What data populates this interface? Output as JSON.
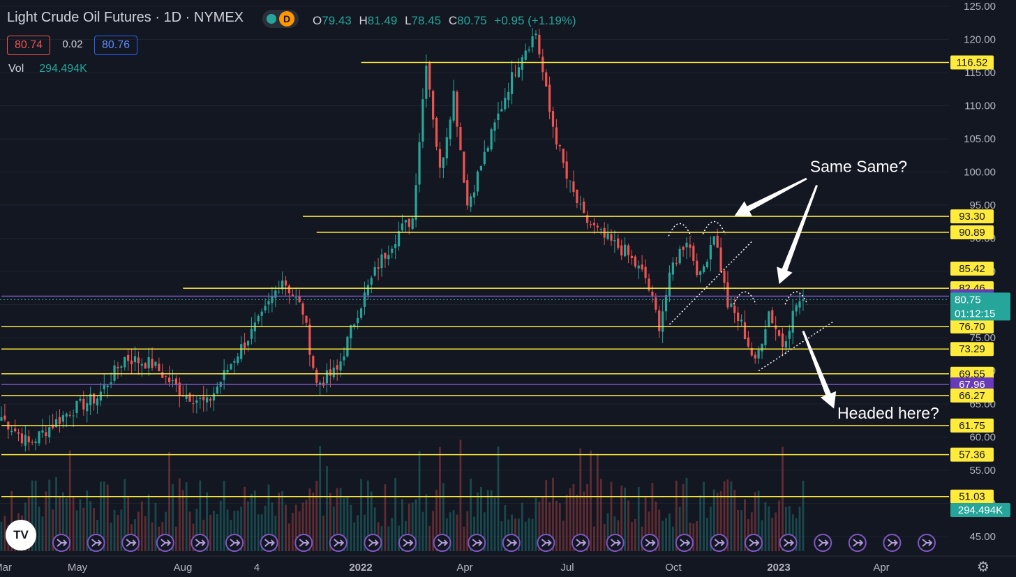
{
  "header": {
    "title": "Light Crude Oil Futures · 1D · NYMEX",
    "ohlc": [
      {
        "k": "O",
        "v": "79.43"
      },
      {
        "k": "H",
        "v": "81.49"
      },
      {
        "k": "L",
        "v": "78.45"
      },
      {
        "k": "C",
        "v": "80.75"
      },
      {
        "k": "",
        "v": "+0.95 (+1.19%)"
      }
    ],
    "bid": "80.74",
    "spread": "0.02",
    "ask": "80.76",
    "vol_label": "Vol",
    "vol_value": "294.494K"
  },
  "logo_text": "TV",
  "gear_icon": "gear-icon",
  "chart_data": {
    "type": "candlestick",
    "y_axis": {
      "min": 45,
      "max": 125,
      "ticks": [
        "125.00",
        "120.00",
        "115.00",
        "110.00",
        "105.00",
        "100.00",
        "95.00",
        "90.00",
        "85.00",
        "80.00",
        "75.00",
        "70.00",
        "65.00",
        "60.00",
        "55.00",
        "50.00",
        "45.00"
      ]
    },
    "x_axis": {
      "labels": [
        {
          "text": "Mar",
          "bold": false
        },
        {
          "text": "May",
          "bold": false
        },
        {
          "text": "Aug",
          "bold": false
        },
        {
          "text": "4",
          "bold": false
        },
        {
          "text": "2022",
          "bold": true
        },
        {
          "text": "Apr",
          "bold": false
        },
        {
          "text": "Jul",
          "bold": false
        },
        {
          "text": "Oct",
          "bold": false
        },
        {
          "text": "2023",
          "bold": true
        },
        {
          "text": "Apr",
          "bold": false
        }
      ]
    },
    "levels": [
      {
        "value": 116.52,
        "label": "116.52",
        "color": "#ffeb3b",
        "start_bar": 105
      },
      {
        "value": 93.3,
        "label": "93.30",
        "color": "#ffeb3b",
        "start_bar": 88
      },
      {
        "value": 90.89,
        "label": "90.89",
        "color": "#ffeb3b",
        "start_bar": 92
      },
      {
        "value": 85.42,
        "label": "85.42",
        "color": "#ffeb3b",
        "start_bar": null
      },
      {
        "value": 82.46,
        "label": "82.46",
        "color": "#ffeb3b",
        "start_bar": 53
      },
      {
        "value": 81.26,
        "label": "81.26",
        "color": "#7e57c2",
        "start_bar": 0
      },
      {
        "value": 76.7,
        "label": "76.70",
        "color": "#ffeb3b",
        "start_bar": 0
      },
      {
        "value": 73.29,
        "label": "73.29",
        "color": "#ffeb3b",
        "start_bar": 0
      },
      {
        "value": 69.55,
        "label": "69.55",
        "color": "#ffeb3b",
        "start_bar": 0
      },
      {
        "value": 67.96,
        "label": "67.96",
        "color": "#7e57c2",
        "start_bar": 0
      },
      {
        "value": 66.27,
        "label": "66.27",
        "color": "#ffeb3b",
        "start_bar": 0
      },
      {
        "value": 61.75,
        "label": "61.75",
        "color": "#ffeb3b",
        "start_bar": 0
      },
      {
        "value": 57.36,
        "label": "57.36",
        "color": "#ffeb3b",
        "start_bar": 0
      },
      {
        "value": 51.03,
        "label": "51.03",
        "color": "#ffeb3b",
        "start_bar": 0
      }
    ],
    "last_price": {
      "value": 80.75,
      "label": "80.75",
      "countdown": "01:12:15",
      "color": "#26a69a"
    },
    "volume_badge": {
      "label": "294.494K",
      "color": "#26a69a"
    },
    "anchors": [
      {
        "bar": 0,
        "price": 63
      },
      {
        "bar": 8,
        "price": 59
      },
      {
        "bar": 20,
        "price": 64
      },
      {
        "bar": 28,
        "price": 66
      },
      {
        "bar": 36,
        "price": 72
      },
      {
        "bar": 44,
        "price": 71
      },
      {
        "bar": 52,
        "price": 67
      },
      {
        "bar": 60,
        "price": 65
      },
      {
        "bar": 68,
        "price": 72
      },
      {
        "bar": 76,
        "price": 78
      },
      {
        "bar": 82,
        "price": 84
      },
      {
        "bar": 88,
        "price": 79
      },
      {
        "bar": 92,
        "price": 68
      },
      {
        "bar": 98,
        "price": 70
      },
      {
        "bar": 104,
        "price": 79
      },
      {
        "bar": 110,
        "price": 86
      },
      {
        "bar": 116,
        "price": 91
      },
      {
        "bar": 120,
        "price": 93
      },
      {
        "bar": 124,
        "price": 117
      },
      {
        "bar": 128,
        "price": 100
      },
      {
        "bar": 132,
        "price": 112
      },
      {
        "bar": 136,
        "price": 95
      },
      {
        "bar": 142,
        "price": 104
      },
      {
        "bar": 148,
        "price": 113
      },
      {
        "bar": 152,
        "price": 118
      },
      {
        "bar": 156,
        "price": 121
      },
      {
        "bar": 160,
        "price": 109
      },
      {
        "bar": 165,
        "price": 99
      },
      {
        "bar": 170,
        "price": 93
      },
      {
        "bar": 176,
        "price": 90
      },
      {
        "bar": 182,
        "price": 88
      },
      {
        "bar": 188,
        "price": 84
      },
      {
        "bar": 192,
        "price": 77
      },
      {
        "bar": 196,
        "price": 86
      },
      {
        "bar": 200,
        "price": 90
      },
      {
        "bar": 204,
        "price": 84
      },
      {
        "bar": 208,
        "price": 91
      },
      {
        "bar": 212,
        "price": 80
      },
      {
        "bar": 216,
        "price": 77
      },
      {
        "bar": 220,
        "price": 71
      },
      {
        "bar": 224,
        "price": 79
      },
      {
        "bar": 228,
        "price": 74
      },
      {
        "bar": 232,
        "price": 80
      },
      {
        "bar": 234,
        "price": 80.75
      }
    ],
    "bar_count": 235,
    "bar_spacing": 4.91,
    "dotted_trendlines": [
      {
        "from": [
          195,
          77
        ],
        "to": [
          219,
          89.5
        ]
      },
      {
        "from": [
          221,
          70
        ],
        "to": [
          243,
          77.5
        ]
      }
    ],
    "arcs": [
      {
        "center_bar": 198,
        "price": 91.8
      },
      {
        "center_bar": 208,
        "price": 92.1
      },
      {
        "center_bar": 217,
        "price": 81.5
      },
      {
        "center_bar": 232,
        "price": 81.5
      }
    ],
    "annotations": [
      {
        "text": "Same Same?",
        "bar": 236,
        "price": 100.0
      },
      {
        "text": "Headed here?",
        "bar": 244,
        "price": 62.8
      }
    ],
    "arrows": [
      {
        "from": [
          235,
          99
        ],
        "to": [
          214,
          93.4
        ]
      },
      {
        "from": [
          238,
          98
        ],
        "to": [
          227,
          83.1
        ]
      },
      {
        "from": [
          234,
          76
        ],
        "to": [
          243,
          64.3
        ]
      }
    ],
    "event_markers": 28
  }
}
